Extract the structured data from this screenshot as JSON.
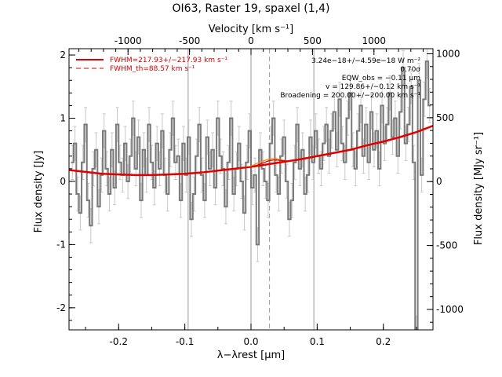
{
  "chart_data": {
    "type": "line",
    "title": "OI63, Raster 19, spaxel (1,4)",
    "xlabel": "λ−λrest [μm]",
    "ylabel": "Flux density [Jy]",
    "top_label": "Velocity [km s⁻¹]",
    "right_label": "Flux density [MJy sr⁻¹]",
    "xlim": [
      -0.275,
      0.275
    ],
    "ylim": [
      -2.35,
      2.1
    ],
    "top_lim": [
      -1480,
      1480
    ],
    "right_lim": [
      -1160,
      1040
    ],
    "x_ticks": [
      "-0.2",
      "-0.1",
      "0.0",
      "0.1",
      "0.2"
    ],
    "x_tick_values": [
      -0.2,
      -0.1,
      0.0,
      0.1,
      0.2
    ],
    "y_ticks": [
      "-2",
      "-1",
      "0",
      "1",
      "2"
    ],
    "y_tick_values": [
      -2,
      -1,
      0,
      1,
      2
    ],
    "top_ticks": [
      "-1000",
      "-500",
      "0",
      "500",
      "1000"
    ],
    "top_tick_values": [
      -1000,
      -500,
      0,
      500,
      1000
    ],
    "right_ticks": [
      "-1000",
      "-500",
      "0",
      "500",
      "1000"
    ],
    "right_tick_values": [
      -1000,
      -500,
      0,
      500,
      1000
    ],
    "vlines_solid": [
      -0.095,
      0.0,
      0.095
    ],
    "vline_dashed": 0.028,
    "legend": {
      "placement": "top-left",
      "solid_label": "FWHM=217.93+/−217.93 km s⁻¹",
      "dashed_label": "FWHM_th=88.57 km s⁻¹"
    },
    "annotations": [
      "3.24e−18+/−4.59e−18 W m⁻²",
      "0.70σ",
      "EQW_obs = −0.11 μm",
      "v = 129.86+/−0.12 km s⁻¹",
      "Broadening = 200.00+/−200.00 km s⁻¹"
    ],
    "series": [
      {
        "role": "data",
        "color": "#7a7a7a",
        "x": [
          -0.27,
          -0.266,
          -0.262,
          -0.258,
          -0.254,
          -0.25,
          -0.246,
          -0.242,
          -0.238,
          -0.234,
          -0.23,
          -0.226,
          -0.222,
          -0.218,
          -0.214,
          -0.21,
          -0.206,
          -0.202,
          -0.198,
          -0.194,
          -0.19,
          -0.186,
          -0.182,
          -0.178,
          -0.174,
          -0.17,
          -0.166,
          -0.162,
          -0.158,
          -0.154,
          -0.15,
          -0.146,
          -0.142,
          -0.138,
          -0.134,
          -0.13,
          -0.126,
          -0.122,
          -0.118,
          -0.114,
          -0.11,
          -0.106,
          -0.102,
          -0.098,
          -0.094,
          -0.09,
          -0.086,
          -0.082,
          -0.078,
          -0.074,
          -0.07,
          -0.066,
          -0.062,
          -0.058,
          -0.054,
          -0.05,
          -0.046,
          -0.042,
          -0.038,
          -0.034,
          -0.03,
          -0.026,
          -0.022,
          -0.018,
          -0.014,
          -0.01,
          -0.006,
          -0.002,
          0.002,
          0.006,
          0.01,
          0.014,
          0.018,
          0.022,
          0.026,
          0.03,
          0.034,
          0.038,
          0.042,
          0.046,
          0.05,
          0.054,
          0.058,
          0.062,
          0.066,
          0.07,
          0.074,
          0.078,
          0.082,
          0.086,
          0.09,
          0.094,
          0.098,
          0.102,
          0.106,
          0.11,
          0.114,
          0.118,
          0.122,
          0.126,
          0.13,
          0.134,
          0.138,
          0.142,
          0.146,
          0.15,
          0.154,
          0.158,
          0.162,
          0.166,
          0.17,
          0.174,
          0.178,
          0.182,
          0.186,
          0.19,
          0.194,
          0.198,
          0.202,
          0.206,
          0.21,
          0.214,
          0.218,
          0.222,
          0.226,
          0.23,
          0.234,
          0.238,
          0.242,
          0.246,
          0.25,
          0.254,
          0.258,
          0.262,
          0.266,
          0.27
        ],
        "y": [
          0.3,
          0.6,
          -0.2,
          -0.5,
          0.3,
          0.9,
          -0.3,
          -0.7,
          0.2,
          0.5,
          -0.4,
          0.1,
          0.8,
          0.2,
          -0.2,
          0.5,
          -0.1,
          0.9,
          0.3,
          0.1,
          0.6,
          0.0,
          0.4,
          1.0,
          0.2,
          0.7,
          -0.3,
          0.5,
          0.1,
          0.9,
          0.3,
          -0.1,
          0.6,
          0.2,
          0.8,
          0.1,
          -0.2,
          0.5,
          1.0,
          0.3,
          0.4,
          -0.3,
          0.6,
          0.1,
          0.7,
          -0.6,
          -0.2,
          0.4,
          0.9,
          0.1,
          -0.3,
          0.7,
          0.2,
          0.5,
          -0.1,
          1.0,
          0.4,
          0.2,
          -0.4,
          0.3,
          1.0,
          -0.2,
          0.2,
          0.6,
          0.0,
          -0.5,
          0.3,
          0.8,
          -0.1,
          0.1,
          -1.0,
          0.5,
          0.2,
          0.0,
          -0.3,
          0.6,
          1.0,
          0.1,
          -0.2,
          0.4,
          0.7,
          0.0,
          -0.6,
          -0.3,
          0.3,
          0.9,
          0.2,
          0.5,
          -0.2,
          0.1,
          0.7,
          0.3,
          0.8,
          0.4,
          0.2,
          0.6,
          0.9,
          0.4,
          0.8,
          1.1,
          0.5,
          1.3,
          0.6,
          0.3,
          1.0,
          1.4,
          0.5,
          0.2,
          0.8,
          1.2,
          0.4,
          0.9,
          0.3,
          1.1,
          0.5,
          0.8,
          0.2,
          1.2,
          0.6,
          0.9,
          1.4,
          0.7,
          1.0,
          0.4,
          1.1,
          1.8,
          0.6,
          0.9,
          1.5,
          0.3,
          -2.4,
          1.6,
          0.1,
          1.3,
          1.9,
          1.2
        ],
        "yerr": 0.27
      },
      {
        "role": "fit-continuum",
        "color": "#e00000",
        "x": [
          -0.275,
          -0.25,
          -0.225,
          -0.2,
          -0.175,
          -0.15,
          -0.125,
          -0.1,
          -0.075,
          -0.05,
          -0.025,
          0.0,
          0.025,
          0.05,
          0.075,
          0.1,
          0.125,
          0.15,
          0.175,
          0.2,
          0.225,
          0.25,
          0.275
        ],
        "y": [
          0.18,
          0.15,
          0.12,
          0.11,
          0.1,
          0.1,
          0.11,
          0.12,
          0.14,
          0.17,
          0.2,
          0.23,
          0.27,
          0.31,
          0.35,
          0.4,
          0.45,
          0.5,
          0.57,
          0.63,
          0.7,
          0.78,
          0.88
        ]
      },
      {
        "role": "fit-line",
        "color": "#ff7f00",
        "x": [
          -0.02,
          -0.01,
          0.0,
          0.01,
          0.02,
          0.028,
          0.036,
          0.046,
          0.056,
          0.066
        ],
        "y": [
          0.21,
          0.22,
          0.24,
          0.29,
          0.33,
          0.355,
          0.36,
          0.34,
          0.32,
          0.33
        ]
      },
      {
        "role": "fit-total",
        "color": "#d40000",
        "x": [
          -0.02,
          -0.01,
          0.0,
          0.01,
          0.02,
          0.028,
          0.036,
          0.046,
          0.056,
          0.066
        ],
        "y": [
          0.21,
          0.22,
          0.23,
          0.26,
          0.3,
          0.33,
          0.34,
          0.33,
          0.32,
          0.33
        ]
      }
    ]
  }
}
